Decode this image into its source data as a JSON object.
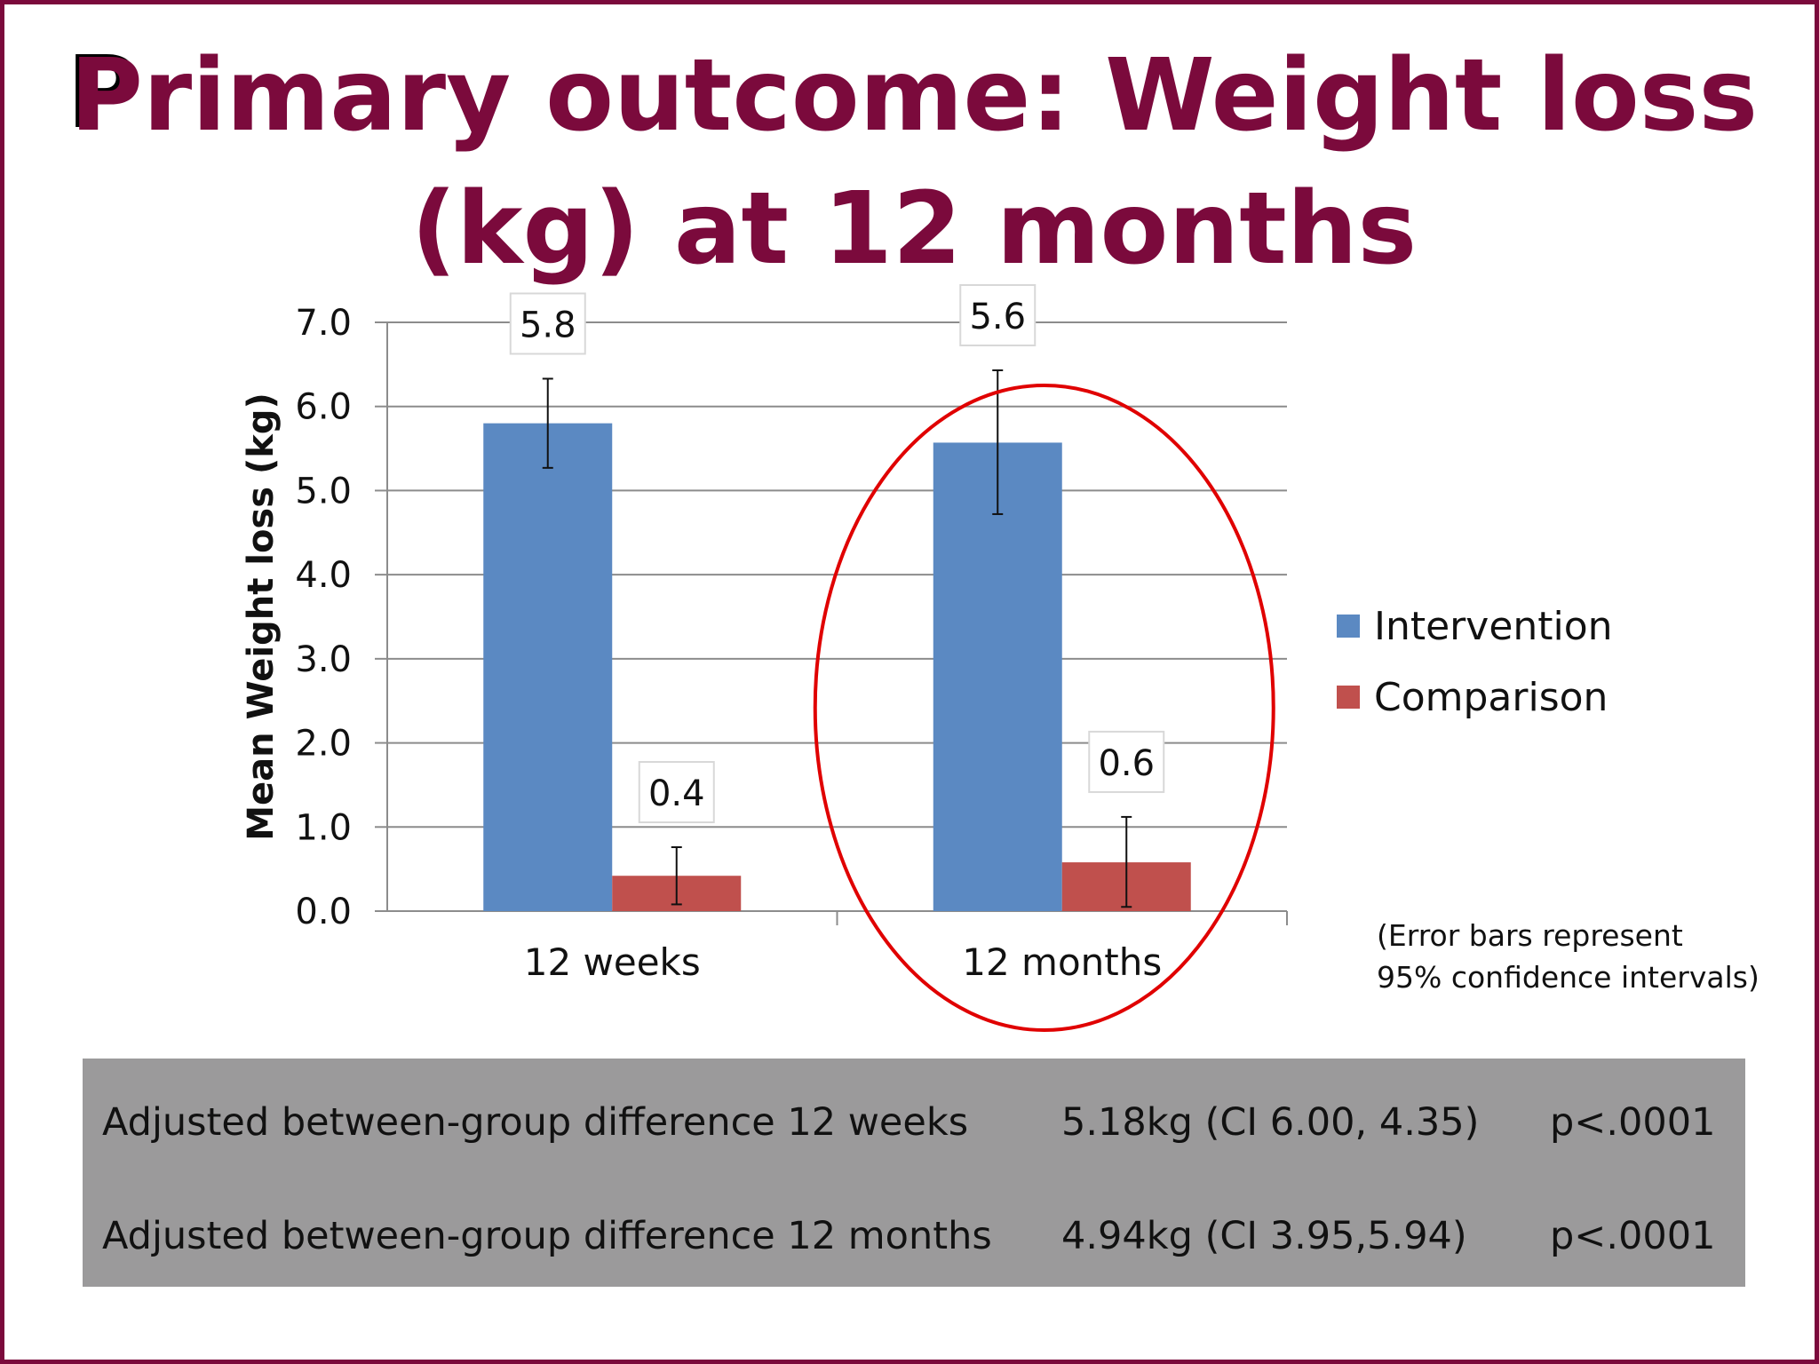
{
  "slide": {
    "title_first_letter": "P",
    "title_line1_rest": "rimary outcome:  Weight loss",
    "title_line2": "(kg) at 12 months",
    "error_note_line1": "(Error bars represent",
    "error_note_line2": "95% confidence intervals)"
  },
  "colors": {
    "title": "#7b0a3c",
    "border": "#7b0a3c",
    "intervention": "#5b89c2",
    "comparison": "#c0504d",
    "highlight_ellipse": "#e00000",
    "stats_background": "#9b9a9b"
  },
  "chart_data": {
    "type": "bar",
    "categories": [
      "12 weeks",
      "12 months"
    ],
    "ylabel": "Mean Weight loss (kg)",
    "ylim": [
      0,
      7
    ],
    "yticks": [
      "0.0",
      "1.0",
      "2.0",
      "3.0",
      "4.0",
      "5.0",
      "6.0",
      "7.0"
    ],
    "grid": true,
    "legend_position": "right",
    "series": [
      {
        "name": "Intervention",
        "values": [
          5.8,
          5.57
        ],
        "error_low": [
          5.27,
          4.72
        ],
        "error_high": [
          6.33,
          6.43
        ],
        "labels": [
          "5.8",
          "5.6"
        ]
      },
      {
        "name": "Comparison",
        "values": [
          0.42,
          0.58
        ],
        "error_low": [
          0.08,
          0.05
        ],
        "error_high": [
          0.76,
          1.12
        ],
        "labels": [
          "0.4",
          "0.6"
        ]
      }
    ],
    "highlight": "12 months"
  },
  "stats_table": [
    {
      "label": "Adjusted between-group difference 12 weeks",
      "value": "5.18kg (CI 6.00, 4.35)",
      "p": "p<.0001"
    },
    {
      "label": "Adjusted between-group difference 12 months",
      "value": "4.94kg (CI 3.95,5.94)",
      "p": "p<.0001"
    }
  ]
}
